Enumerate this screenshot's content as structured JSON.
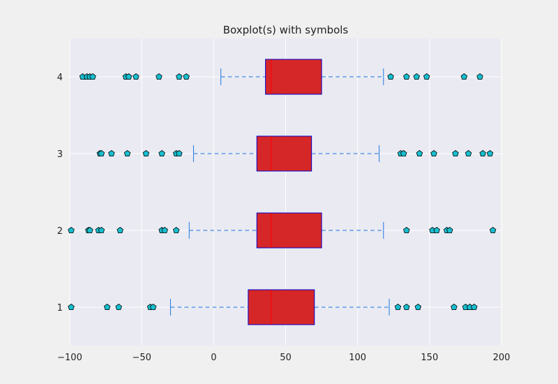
{
  "chart_data": {
    "type": "boxplot",
    "orientation": "horizontal",
    "title": "Boxplot(s) with symbols",
    "xlabel": "",
    "ylabel": "",
    "xlim": [
      -100,
      200
    ],
    "x_ticks": [
      -100,
      -50,
      0,
      50,
      100,
      150,
      200
    ],
    "x_tick_labels": [
      "−100",
      "−50",
      "0",
      "50",
      "100",
      "150",
      "200"
    ],
    "ylim": [
      0.5,
      4.5
    ],
    "categories": [
      "1",
      "2",
      "3",
      "4"
    ],
    "grid": true,
    "colors": {
      "figure_bg": "#f0f0f0",
      "axes_bg": "#eaeaf2",
      "grid": "#ffffff",
      "box_fill": "#d62728",
      "box_edge": "#0000cc",
      "median": "#ff0000",
      "whisker": "#1f77e0",
      "flier_fill": "#17becf",
      "flier_edge": "#000000"
    },
    "flier_marker": "pentagon",
    "series": [
      {
        "position": 1,
        "whisker_low": -30,
        "q1": 24,
        "median": 40,
        "q3": 70,
        "whisker_high": 122,
        "fliers": [
          -99,
          -74,
          -66,
          -44,
          -42,
          128,
          134,
          142,
          167,
          175,
          178,
          181
        ]
      },
      {
        "position": 2,
        "whisker_low": -17,
        "q1": 30,
        "median": 40,
        "q3": 75,
        "whisker_high": 118,
        "fliers": [
          -99,
          -87,
          -86,
          -80,
          -78,
          -65,
          -36,
          -34,
          -26,
          134,
          152,
          155,
          162,
          164,
          194
        ]
      },
      {
        "position": 3,
        "whisker_low": -14,
        "q1": 30,
        "median": 40,
        "q3": 68,
        "whisker_high": 115,
        "fliers": [
          -79,
          -78,
          -71,
          -60,
          -47,
          -36,
          -26,
          -24,
          130,
          132,
          143,
          153,
          168,
          177,
          187,
          192
        ]
      },
      {
        "position": 4,
        "whisker_low": 5,
        "q1": 36,
        "median": 40,
        "q3": 75,
        "whisker_high": 118,
        "fliers": [
          -91,
          -88,
          -86,
          -84,
          -61,
          -59,
          -54,
          -38,
          -24,
          -19,
          123,
          134,
          141,
          148,
          174,
          185
        ]
      }
    ]
  }
}
